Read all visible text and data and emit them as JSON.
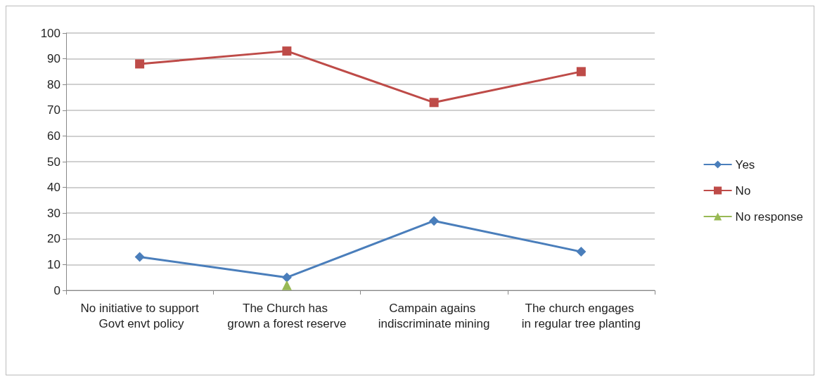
{
  "chart_data": {
    "type": "line",
    "categories": [
      "No initiative to support Govt envt policy",
      "The Church has grown a forest reserve",
      "Campain agains indiscriminate mining",
      "The church engages in regular tree planting"
    ],
    "series": [
      {
        "name": "Yes",
        "color": "#4a7ebb",
        "marker": "diamond",
        "values": [
          13,
          5,
          27,
          15
        ]
      },
      {
        "name": "No",
        "color": "#be4b48",
        "marker": "square",
        "values": [
          88,
          93,
          73,
          85
        ]
      },
      {
        "name": "No response",
        "color": "#98b954",
        "marker": "triangle",
        "values": [
          null,
          2,
          null,
          null
        ]
      }
    ],
    "ylim": [
      0,
      100
    ],
    "yticks": [
      0,
      10,
      20,
      30,
      40,
      50,
      60,
      70,
      80,
      90,
      100
    ],
    "grid": "y",
    "legend": "right",
    "line_style": "solid"
  }
}
